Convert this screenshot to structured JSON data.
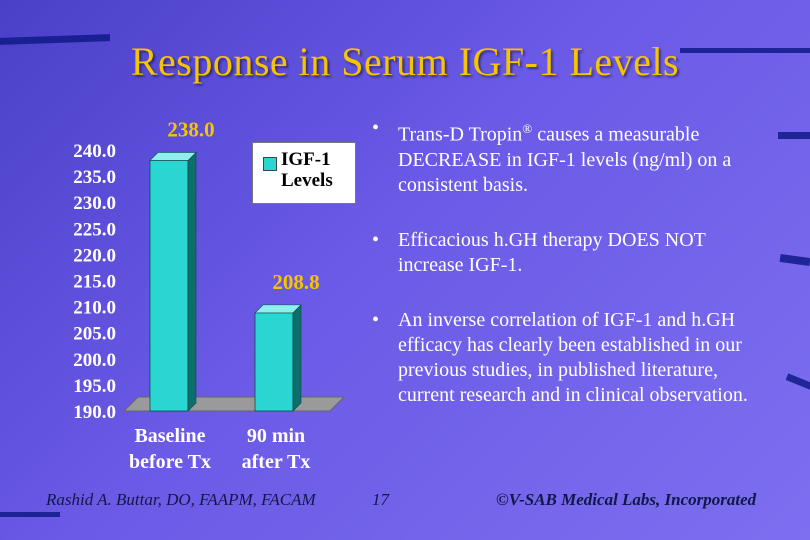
{
  "title": "Response in Serum IGF-1 Levels",
  "chart_data": {
    "type": "bar",
    "categories": [
      [
        "Baseline",
        "before Tx"
      ],
      [
        "90 min",
        "after Tx"
      ]
    ],
    "series": [
      {
        "name": "IGF-1 Levels",
        "values": [
          238.0,
          208.8
        ]
      }
    ],
    "data_labels": [
      "238.0",
      "208.8"
    ],
    "y_ticks": [
      "240.0",
      "235.0",
      "230.0",
      "225.0",
      "220.0",
      "215.0",
      "210.0",
      "205.0",
      "200.0",
      "195.0",
      "190.0"
    ],
    "ylim": [
      190,
      240
    ],
    "legend_position": "top-right",
    "legend_lines": [
      "IGF-1",
      "Levels"
    ],
    "grid": false,
    "colors": {
      "bar_front": "#2ad6d2",
      "bar_side": "#0e6e6c",
      "bar_top": "#8ef0ee",
      "floor": "#9a9a9a",
      "labels_white": "#ffffff",
      "data_label": "#f6c400"
    }
  },
  "bullets": [
    {
      "text_before": "Trans-D Tropin",
      "sup": "®",
      "text_after": " causes a measurable DECREASE in IGF-1 levels (ng/ml) on a consistent basis."
    },
    {
      "text": "Efficacious h.GH therapy DOES NOT increase IGF-1."
    },
    {
      "text": "An inverse correlation of IGF-1 and h.GH efficacy has clearly been established in our previous studies, in published literature, current research and in clinical observation."
    }
  ],
  "bullet_marker": "•",
  "footer": {
    "author": "Rashid A. Buttar, DO, FAAPM, FACAM",
    "page": "17",
    "copyright": "©V-SAB Medical Labs, Incorporated"
  }
}
